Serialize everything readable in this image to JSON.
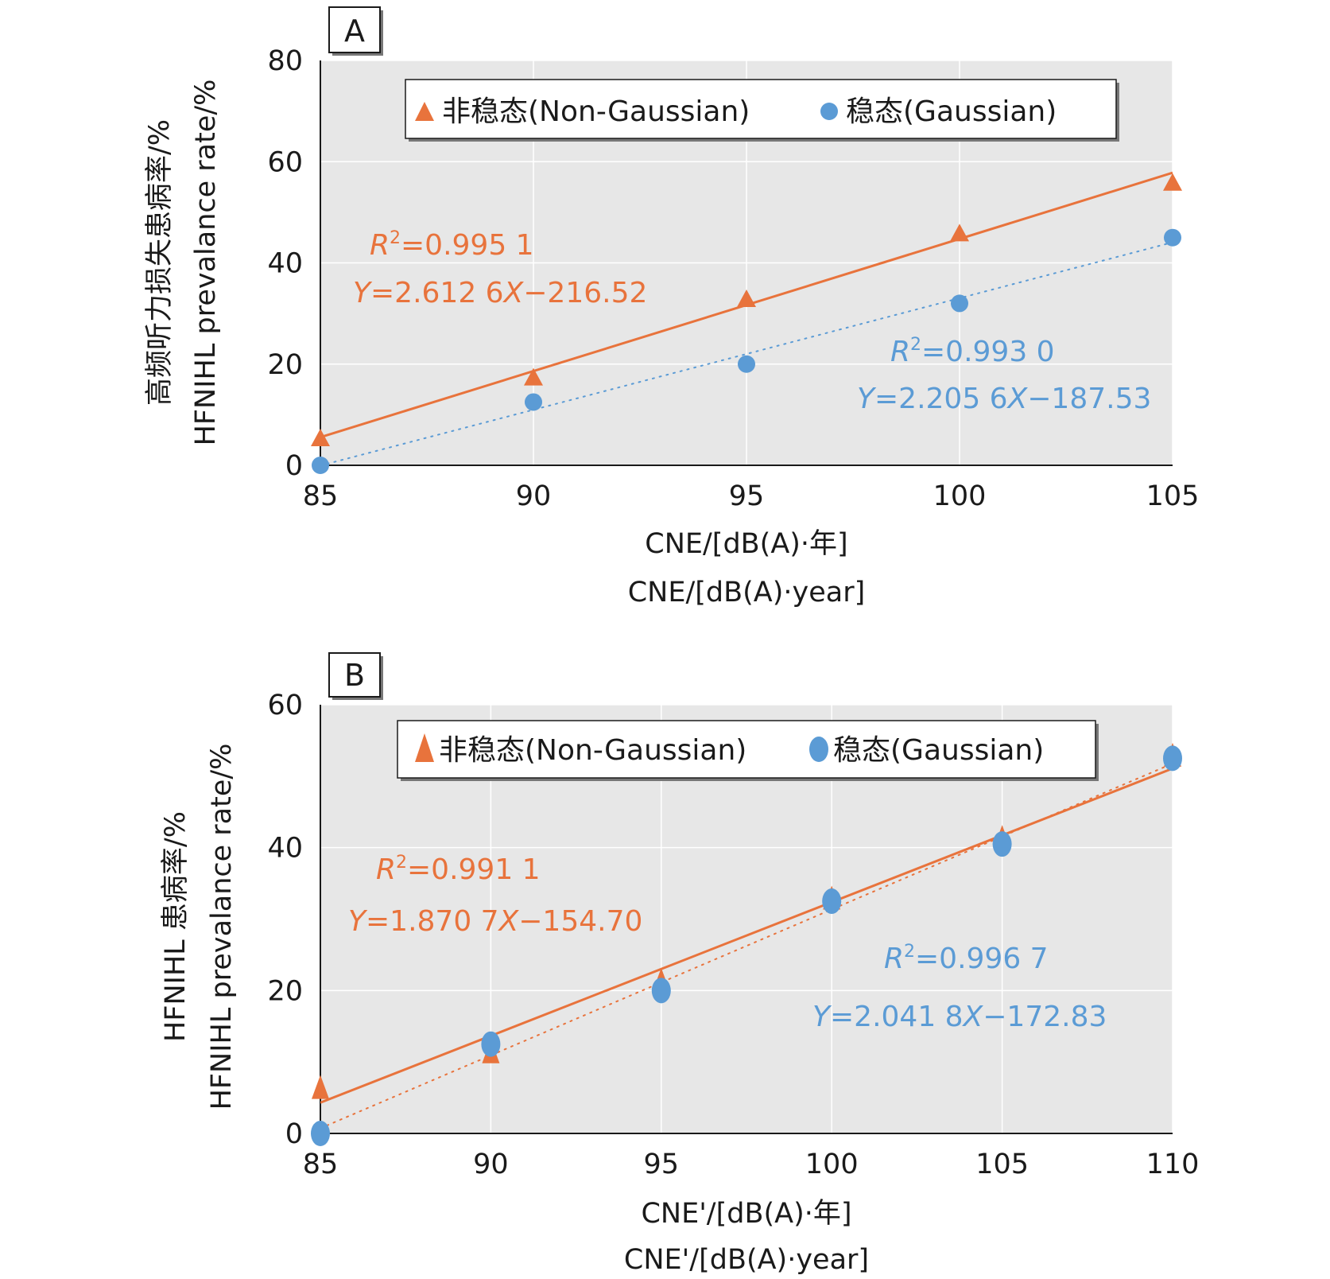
{
  "colors": {
    "orange": "#e8733c",
    "blue": "#5b9bd5",
    "plot_bg": "#e7e7e7",
    "grid": "#ffffff"
  },
  "legend": {
    "nongaussian": "非稳态(Non-Gaussian)",
    "gaussian": "稳态(Gaussian)"
  },
  "chart_data": [
    {
      "panel": "A",
      "type": "scatter",
      "xlabel_zh": "CNE/[dB(A)·年]",
      "xlabel_en": "CNE/[dB(A)·year]",
      "ylabel_zh": "高频听力损失患病率/%",
      "ylabel_en": "HFNIHL prevalance rate/%",
      "xlim": [
        85,
        105
      ],
      "ylim": [
        0,
        80
      ],
      "xticks": [
        85,
        90,
        95,
        100,
        105
      ],
      "yticks": [
        0,
        20,
        40,
        60,
        80
      ],
      "grid": true,
      "legend_position": "top",
      "series": [
        {
          "name": "非稳态(Non-Gaussian)",
          "marker": "triangle",
          "color": "#e8733c",
          "x": [
            85,
            90,
            95,
            100,
            105
          ],
          "y": [
            5.5,
            17.5,
            33.0,
            46.0,
            56.0
          ],
          "fit": {
            "slope": 2.6126,
            "intercept": -216.52,
            "r2_text": "=0.995 1",
            "eq_prefix": "=2.612 6",
            "eq_suffix": "−216.52",
            "style": "solid"
          }
        },
        {
          "name": "稳态(Gaussian)",
          "marker": "circle",
          "color": "#5b9bd5",
          "x": [
            85,
            90,
            95,
            100,
            105
          ],
          "y": [
            0,
            12.5,
            20.0,
            32.0,
            45.0
          ],
          "fit": {
            "slope": 2.2056,
            "intercept": -187.53,
            "r2_text": "=0.993 0",
            "eq_prefix": "=2.205 6",
            "eq_suffix": "−187.53",
            "style": "dotted"
          }
        }
      ]
    },
    {
      "panel": "B",
      "type": "scatter",
      "xlabel_zh": "CNE'/[dB(A)·年]",
      "xlabel_en": "CNE'/[dB(A)·year]",
      "ylabel_zh": "HFNIHL 患病率/%",
      "ylabel_en": "HFNIHL prevalance rate/%",
      "xlim": [
        85,
        110
      ],
      "ylim": [
        0,
        60
      ],
      "xticks": [
        85,
        90,
        95,
        100,
        105,
        110
      ],
      "yticks": [
        0,
        20,
        40,
        60
      ],
      "grid": true,
      "legend_position": "top",
      "series": [
        {
          "name": "非稳态(Non-Gaussian)",
          "marker": "triangle",
          "color": "#e8733c",
          "x": [
            85,
            90,
            95,
            100,
            105,
            110
          ],
          "y": [
            6.5,
            11.5,
            21.5,
            33.0,
            41.5,
            53.0
          ],
          "fit": {
            "slope": 1.8707,
            "intercept": -154.7,
            "r2_text": "=0.991 1",
            "eq_prefix": "=1.870 7",
            "eq_suffix": "−154.70",
            "style": "solid"
          }
        },
        {
          "name": "稳态(Gaussian)",
          "marker": "circle",
          "color": "#5b9bd5",
          "x": [
            85,
            90,
            95,
            100,
            105,
            110
          ],
          "y": [
            0,
            12.5,
            20.0,
            32.5,
            40.5,
            52.5
          ],
          "fit": {
            "slope": 2.0418,
            "intercept": -172.83,
            "r2_text": "=0.996 7",
            "eq_prefix": "=2.041 8",
            "eq_suffix": "−172.83",
            "style": "dotted"
          }
        }
      ]
    }
  ]
}
